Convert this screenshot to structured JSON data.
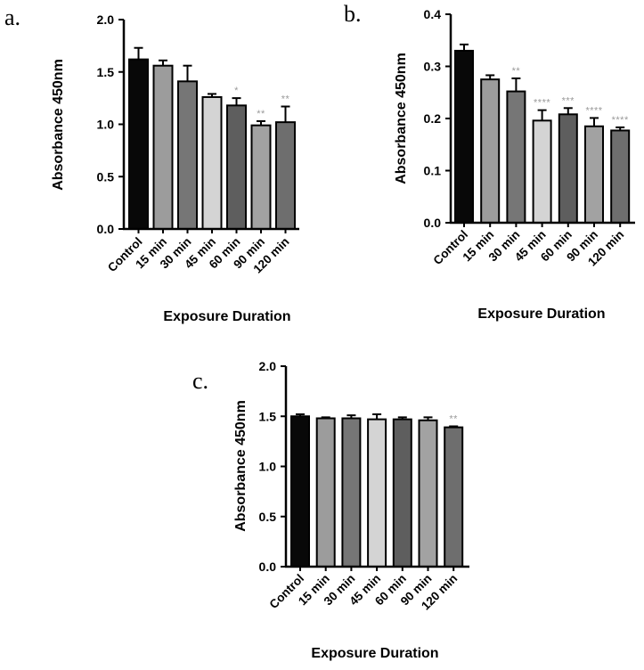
{
  "chart_data": [
    {
      "type": "bar",
      "panel": "a.",
      "categories": [
        "Control",
        "15 min",
        "30 min",
        "45 min",
        "60 min",
        "90 min",
        "120 min"
      ],
      "values": [
        1.62,
        1.56,
        1.41,
        1.26,
        1.18,
        0.99,
        1.02
      ],
      "errors": [
        0.11,
        0.05,
        0.15,
        0.03,
        0.07,
        0.04,
        0.15
      ],
      "significance": [
        "",
        "",
        "",
        "",
        "*",
        "**",
        "**"
      ],
      "bar_colors": [
        "#080808",
        "#9c9c9c",
        "#767676",
        "#d4d4d4",
        "#5e5e5e",
        "#a2a2a2",
        "#6e6e6e"
      ],
      "xlabel": "Exposure Duration",
      "ylabel": "Absorbance 450nm",
      "ylim": [
        0,
        2.0
      ],
      "yticks": [
        "0.0",
        "0.5",
        "1.0",
        "1.5",
        "2.0"
      ],
      "grid": false,
      "legend": "none"
    },
    {
      "type": "bar",
      "panel": "b.",
      "categories": [
        "Control",
        "15 min",
        "30 min",
        "45 min",
        "60 min",
        "90 min",
        "120 min"
      ],
      "values": [
        0.33,
        0.275,
        0.252,
        0.196,
        0.208,
        0.185,
        0.177
      ],
      "errors": [
        0.012,
        0.008,
        0.025,
        0.02,
        0.012,
        0.016,
        0.006
      ],
      "significance": [
        "",
        "",
        "**",
        "****",
        "***",
        "****",
        "****"
      ],
      "bar_colors": [
        "#080808",
        "#9c9c9c",
        "#767676",
        "#d4d4d4",
        "#5e5e5e",
        "#a2a2a2",
        "#6e6e6e"
      ],
      "xlabel": "Exposure Duration",
      "ylabel": "Absorbance 450nm",
      "ylim": [
        0,
        0.4
      ],
      "yticks": [
        "0.0",
        "0.1",
        "0.2",
        "0.3",
        "0.4"
      ],
      "grid": false,
      "legend": "none"
    },
    {
      "type": "bar",
      "panel": "c.",
      "categories": [
        "Control",
        "15 min",
        "30 min",
        "45 min",
        "60 min",
        "90 min",
        "120 min"
      ],
      "values": [
        1.5,
        1.48,
        1.48,
        1.47,
        1.47,
        1.46,
        1.39
      ],
      "errors": [
        0.02,
        0.01,
        0.03,
        0.05,
        0.02,
        0.03,
        0.01
      ],
      "significance": [
        "",
        "",
        "",
        "",
        "",
        "",
        "**"
      ],
      "bar_colors": [
        "#080808",
        "#9c9c9c",
        "#767676",
        "#d4d4d4",
        "#5e5e5e",
        "#a2a2a2",
        "#6e6e6e"
      ],
      "xlabel": "Exposure Duration",
      "ylabel": "Absorbance 450nm",
      "ylim": [
        0,
        2.0
      ],
      "yticks": [
        "0.0",
        "0.5",
        "1.0",
        "1.5",
        "2.0"
      ],
      "grid": false,
      "legend": "none"
    }
  ]
}
